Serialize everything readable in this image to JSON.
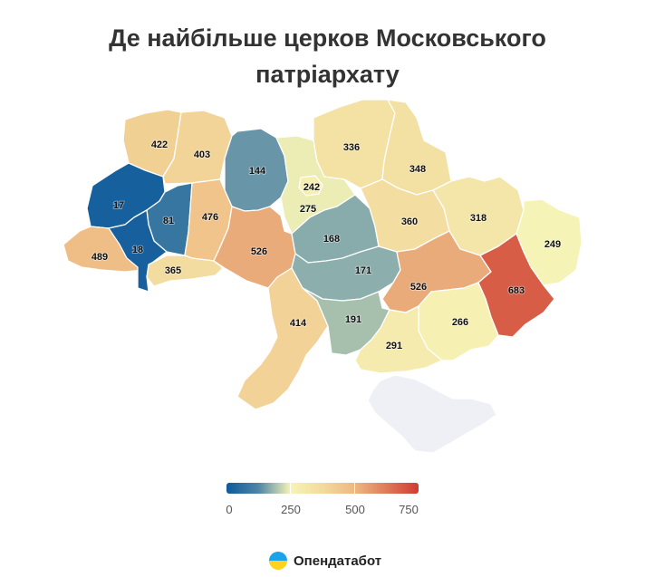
{
  "title": {
    "line1": "Де найбільше церков Московського",
    "line2": "патріархату"
  },
  "colors": {
    "low": "#0d5a9c",
    "mid": "#f6f4b6",
    "high": "#cf3b32",
    "no_data": "#eef0f5",
    "border": "#ffffff"
  },
  "scale": {
    "min": 0,
    "mid": 250,
    "max": 750
  },
  "legend": {
    "ticks": [
      "0",
      "250",
      "500",
      "750"
    ]
  },
  "regions": [
    {
      "id": "volyn",
      "value": 422,
      "label": "422"
    },
    {
      "id": "rivne",
      "value": 403,
      "label": "403"
    },
    {
      "id": "zhytomyr",
      "value": 144,
      "label": "144"
    },
    {
      "id": "kyiv-oblast",
      "value": 242,
      "label": "242"
    },
    {
      "id": "kyiv-city",
      "value": 275,
      "label": "275"
    },
    {
      "id": "chernihiv",
      "value": 336,
      "label": "336"
    },
    {
      "id": "sumy",
      "value": 348,
      "label": "348"
    },
    {
      "id": "lviv",
      "value": 17,
      "label": "17"
    },
    {
      "id": "ternopil",
      "value": 81,
      "label": "81"
    },
    {
      "id": "khmelnytskyi",
      "value": 476,
      "label": "476"
    },
    {
      "id": "vinnytsia",
      "value": 526,
      "label": "526"
    },
    {
      "id": "cherkasy",
      "value": 168,
      "label": "168"
    },
    {
      "id": "poltava",
      "value": 360,
      "label": "360"
    },
    {
      "id": "kharkiv",
      "value": 318,
      "label": "318"
    },
    {
      "id": "luhansk",
      "value": 249,
      "label": "249"
    },
    {
      "id": "zakarpattia",
      "value": 489,
      "label": "489"
    },
    {
      "id": "ivano-frankivsk",
      "value": 18,
      "label": "18"
    },
    {
      "id": "chernivtsi",
      "value": 365,
      "label": "365"
    },
    {
      "id": "kirovohrad",
      "value": 171,
      "label": "171"
    },
    {
      "id": "dnipropetrovsk",
      "value": 526,
      "label": "526"
    },
    {
      "id": "donetsk",
      "value": 683,
      "label": "683"
    },
    {
      "id": "odesa",
      "value": 414,
      "label": "414"
    },
    {
      "id": "mykolaiv",
      "value": 191,
      "label": "191"
    },
    {
      "id": "zaporizhzhia",
      "value": 266,
      "label": "266"
    },
    {
      "id": "kherson",
      "value": 291,
      "label": "291"
    },
    {
      "id": "crimea",
      "value": null,
      "label": ""
    }
  ],
  "brand": {
    "name": "Опендатабот",
    "icon": "opendatabot-logo-icon"
  }
}
